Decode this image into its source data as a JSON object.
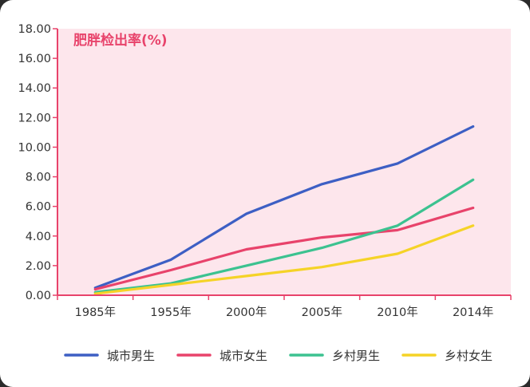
{
  "chart_data": {
    "type": "line",
    "ylabel": "肥胖检出率(%)",
    "categories": [
      "1985年",
      "1955年",
      "2000年",
      "2005年",
      "2010年",
      "2014年"
    ],
    "ylim": [
      0,
      18
    ],
    "yticks": [
      "0.00",
      "2.00",
      "4.00",
      "6.00",
      "8.00",
      "10.00",
      "12.00",
      "14.00",
      "16.00",
      "18.00"
    ],
    "grid": false,
    "legend": "bottom",
    "plot_background": "#fde6ec",
    "axis_color": "#e8436b",
    "series": [
      {
        "name": "城市男生",
        "color": "#3d5fc4",
        "values": [
          0.5,
          2.4,
          5.5,
          7.5,
          8.9,
          11.4
        ]
      },
      {
        "name": "城市女生",
        "color": "#e8436b",
        "values": [
          0.4,
          1.7,
          3.1,
          3.9,
          4.4,
          5.9
        ]
      },
      {
        "name": "乡村男生",
        "color": "#3cc290",
        "values": [
          0.2,
          0.8,
          2.0,
          3.2,
          4.7,
          7.8
        ]
      },
      {
        "name": "乡村女生",
        "color": "#f5d327",
        "values": [
          0.1,
          0.7,
          1.3,
          1.9,
          2.8,
          4.7
        ]
      }
    ]
  }
}
